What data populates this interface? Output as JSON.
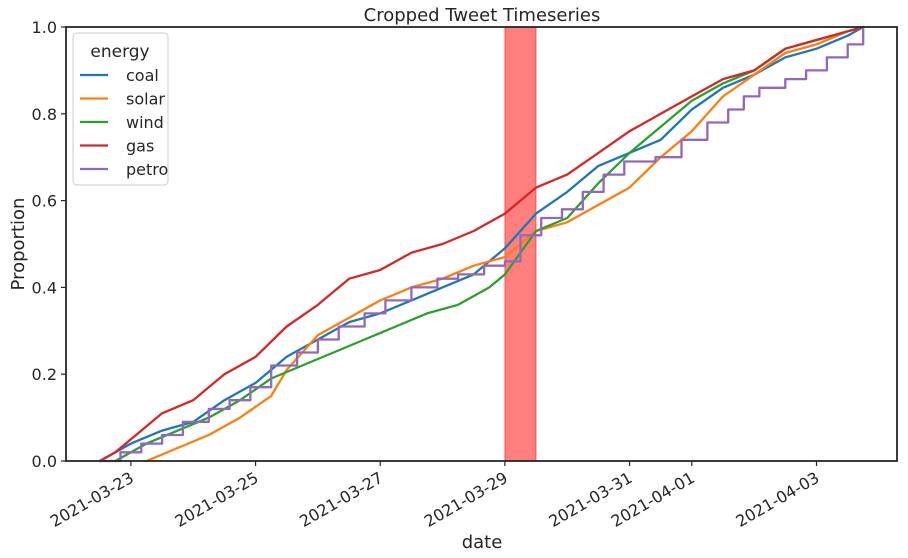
{
  "chart_data": {
    "type": "line",
    "title": "Cropped Tweet Timeseries",
    "xlabel": "date",
    "ylabel": "Proportion",
    "xlim": [
      "2021-03-21T23:00",
      "2021-04-04T07:00"
    ],
    "ylim": [
      0,
      1.0
    ],
    "x_ticks": [
      "2021-03-23",
      "2021-03-25",
      "2021-03-27",
      "2021-03-29",
      "2021-03-31",
      "2021-04-01",
      "2021-04-03"
    ],
    "y_ticks": [
      "0.0",
      "0.2",
      "0.4",
      "0.6",
      "0.8",
      "1.0"
    ],
    "grid": false,
    "legend": {
      "title": "energy",
      "placement": "top-left"
    },
    "highlight_span": {
      "start": "2021-03-29T00:00",
      "end": "2021-03-29T12:00",
      "color": "#ff0000"
    },
    "series": [
      {
        "name": "coal",
        "color": "#1f77b4",
        "step": false,
        "points": [
          [
            "2021-03-22T12:00",
            0.0
          ],
          [
            "2021-03-23T00:00",
            0.04
          ],
          [
            "2021-03-23T12:00",
            0.07
          ],
          [
            "2021-03-24T00:00",
            0.09
          ],
          [
            "2021-03-24T12:00",
            0.14
          ],
          [
            "2021-03-25T00:00",
            0.18
          ],
          [
            "2021-03-25T12:00",
            0.24
          ],
          [
            "2021-03-26T00:00",
            0.28
          ],
          [
            "2021-03-26T12:00",
            0.32
          ],
          [
            "2021-03-27T00:00",
            0.34
          ],
          [
            "2021-03-27T12:00",
            0.37
          ],
          [
            "2021-03-28T00:00",
            0.4
          ],
          [
            "2021-03-28T12:00",
            0.43
          ],
          [
            "2021-03-29T00:00",
            0.49
          ],
          [
            "2021-03-29T12:00",
            0.57
          ],
          [
            "2021-03-30T00:00",
            0.62
          ],
          [
            "2021-03-30T12:00",
            0.68
          ],
          [
            "2021-03-31T00:00",
            0.71
          ],
          [
            "2021-03-31T12:00",
            0.74
          ],
          [
            "2021-04-01T00:00",
            0.81
          ],
          [
            "2021-04-01T12:00",
            0.86
          ],
          [
            "2021-04-02T00:00",
            0.89
          ],
          [
            "2021-04-02T12:00",
            0.93
          ],
          [
            "2021-04-03T00:00",
            0.95
          ],
          [
            "2021-04-03T12:00",
            0.98
          ],
          [
            "2021-04-03T18:00",
            1.0
          ]
        ]
      },
      {
        "name": "solar",
        "color": "#ff7f0e",
        "step": false,
        "points": [
          [
            "2021-03-23T06:00",
            0.0
          ],
          [
            "2021-03-23T18:00",
            0.03
          ],
          [
            "2021-03-24T06:00",
            0.06
          ],
          [
            "2021-03-24T18:00",
            0.1
          ],
          [
            "2021-03-25T06:00",
            0.15
          ],
          [
            "2021-03-25T12:00",
            0.21
          ],
          [
            "2021-03-26T00:00",
            0.29
          ],
          [
            "2021-03-26T12:00",
            0.33
          ],
          [
            "2021-03-27T00:00",
            0.37
          ],
          [
            "2021-03-27T12:00",
            0.4
          ],
          [
            "2021-03-28T00:00",
            0.42
          ],
          [
            "2021-03-28T12:00",
            0.45
          ],
          [
            "2021-03-29T00:00",
            0.47
          ],
          [
            "2021-03-29T12:00",
            0.53
          ],
          [
            "2021-03-30T00:00",
            0.55
          ],
          [
            "2021-03-30T12:00",
            0.59
          ],
          [
            "2021-03-31T00:00",
            0.63
          ],
          [
            "2021-03-31T12:00",
            0.7
          ],
          [
            "2021-04-01T00:00",
            0.76
          ],
          [
            "2021-04-01T12:00",
            0.84
          ],
          [
            "2021-04-02T00:00",
            0.89
          ],
          [
            "2021-04-02T12:00",
            0.94
          ],
          [
            "2021-04-03T00:00",
            0.96
          ],
          [
            "2021-04-03T12:00",
            0.99
          ],
          [
            "2021-04-03T18:00",
            1.0
          ]
        ]
      },
      {
        "name": "wind",
        "color": "#2ca02c",
        "step": false,
        "points": [
          [
            "2021-03-22T18:00",
            0.0
          ],
          [
            "2021-03-23T06:00",
            0.04
          ],
          [
            "2021-03-23T18:00",
            0.07
          ],
          [
            "2021-03-24T06:00",
            0.1
          ],
          [
            "2021-03-24T18:00",
            0.14
          ],
          [
            "2021-03-25T06:00",
            0.19
          ],
          [
            "2021-03-25T18:00",
            0.22
          ],
          [
            "2021-03-26T06:00",
            0.25
          ],
          [
            "2021-03-26T18:00",
            0.28
          ],
          [
            "2021-03-27T06:00",
            0.31
          ],
          [
            "2021-03-27T18:00",
            0.34
          ],
          [
            "2021-03-28T06:00",
            0.36
          ],
          [
            "2021-03-28T18:00",
            0.4
          ],
          [
            "2021-03-29T00:00",
            0.43
          ],
          [
            "2021-03-29T12:00",
            0.53
          ],
          [
            "2021-03-30T00:00",
            0.56
          ],
          [
            "2021-03-30T12:00",
            0.64
          ],
          [
            "2021-03-31T00:00",
            0.71
          ],
          [
            "2021-03-31T12:00",
            0.77
          ],
          [
            "2021-04-01T00:00",
            0.83
          ],
          [
            "2021-04-01T12:00",
            0.87
          ],
          [
            "2021-04-02T00:00",
            0.9
          ],
          [
            "2021-04-02T12:00",
            0.95
          ],
          [
            "2021-04-03T00:00",
            0.97
          ],
          [
            "2021-04-03T12:00",
            0.99
          ],
          [
            "2021-04-03T18:00",
            1.0
          ]
        ]
      },
      {
        "name": "gas",
        "color": "#d62728",
        "step": false,
        "points": [
          [
            "2021-03-22T12:00",
            0.0
          ],
          [
            "2021-03-22T18:00",
            0.02
          ],
          [
            "2021-03-23T00:00",
            0.05
          ],
          [
            "2021-03-23T12:00",
            0.11
          ],
          [
            "2021-03-24T00:00",
            0.14
          ],
          [
            "2021-03-24T12:00",
            0.2
          ],
          [
            "2021-03-25T00:00",
            0.24
          ],
          [
            "2021-03-25T12:00",
            0.31
          ],
          [
            "2021-03-26T00:00",
            0.36
          ],
          [
            "2021-03-26T12:00",
            0.42
          ],
          [
            "2021-03-27T00:00",
            0.44
          ],
          [
            "2021-03-27T12:00",
            0.48
          ],
          [
            "2021-03-28T00:00",
            0.5
          ],
          [
            "2021-03-28T12:00",
            0.53
          ],
          [
            "2021-03-29T00:00",
            0.57
          ],
          [
            "2021-03-29T12:00",
            0.63
          ],
          [
            "2021-03-30T00:00",
            0.66
          ],
          [
            "2021-03-30T12:00",
            0.71
          ],
          [
            "2021-03-31T00:00",
            0.76
          ],
          [
            "2021-03-31T12:00",
            0.8
          ],
          [
            "2021-04-01T00:00",
            0.84
          ],
          [
            "2021-04-01T12:00",
            0.88
          ],
          [
            "2021-04-02T00:00",
            0.9
          ],
          [
            "2021-04-02T12:00",
            0.95
          ],
          [
            "2021-04-03T00:00",
            0.97
          ],
          [
            "2021-04-03T12:00",
            0.99
          ],
          [
            "2021-04-03T18:00",
            1.0
          ]
        ]
      },
      {
        "name": "petro",
        "color": "#9467bd",
        "step": true,
        "points": [
          [
            "2021-03-22T12:00",
            0.0
          ],
          [
            "2021-03-22T20:00",
            0.02
          ],
          [
            "2021-03-23T04:00",
            0.04
          ],
          [
            "2021-03-23T12:00",
            0.06
          ],
          [
            "2021-03-23T20:00",
            0.09
          ],
          [
            "2021-03-24T06:00",
            0.12
          ],
          [
            "2021-03-24T14:00",
            0.14
          ],
          [
            "2021-03-24T22:00",
            0.17
          ],
          [
            "2021-03-25T06:00",
            0.22
          ],
          [
            "2021-03-25T16:00",
            0.25
          ],
          [
            "2021-03-26T00:00",
            0.28
          ],
          [
            "2021-03-26T08:00",
            0.31
          ],
          [
            "2021-03-26T18:00",
            0.34
          ],
          [
            "2021-03-27T02:00",
            0.37
          ],
          [
            "2021-03-27T12:00",
            0.4
          ],
          [
            "2021-03-27T22:00",
            0.42
          ],
          [
            "2021-03-28T06:00",
            0.43
          ],
          [
            "2021-03-28T16:00",
            0.45
          ],
          [
            "2021-03-29T00:00",
            0.46
          ],
          [
            "2021-03-29T06:00",
            0.52
          ],
          [
            "2021-03-29T14:00",
            0.56
          ],
          [
            "2021-03-29T22:00",
            0.58
          ],
          [
            "2021-03-30T06:00",
            0.62
          ],
          [
            "2021-03-30T14:00",
            0.66
          ],
          [
            "2021-03-30T22:00",
            0.69
          ],
          [
            "2021-03-31T10:00",
            0.7
          ],
          [
            "2021-03-31T20:00",
            0.74
          ],
          [
            "2021-04-01T06:00",
            0.78
          ],
          [
            "2021-04-01T14:00",
            0.81
          ],
          [
            "2021-04-01T20:00",
            0.84
          ],
          [
            "2021-04-02T02:00",
            0.86
          ],
          [
            "2021-04-02T12:00",
            0.88
          ],
          [
            "2021-04-02T20:00",
            0.9
          ],
          [
            "2021-04-03T04:00",
            0.93
          ],
          [
            "2021-04-03T12:00",
            0.96
          ],
          [
            "2021-04-03T18:00",
            1.0
          ]
        ]
      }
    ]
  }
}
